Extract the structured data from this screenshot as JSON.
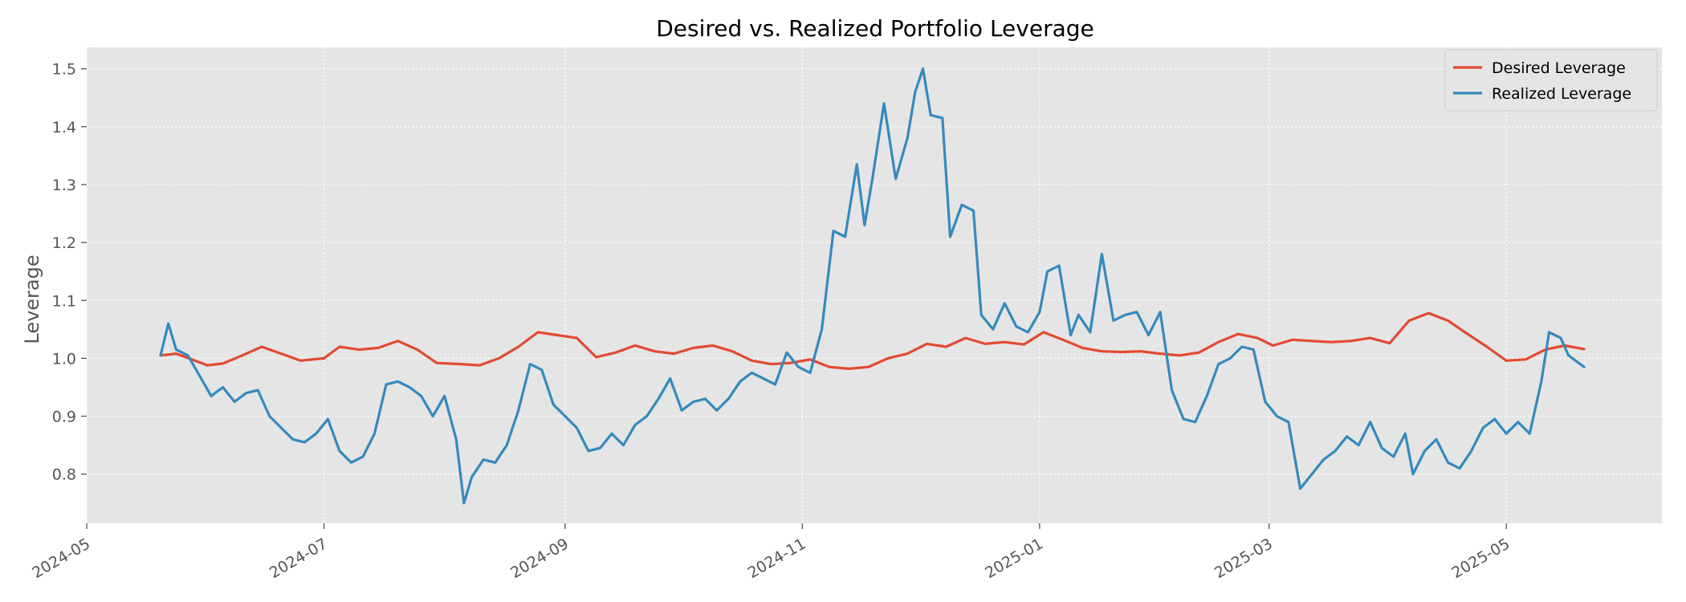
{
  "chart_data": {
    "type": "line",
    "title": "Desired vs. Realized Portfolio Leverage",
    "xlabel": "",
    "ylabel": "Leverage",
    "x_range": [
      "2024-05-01",
      "2025-06-10"
    ],
    "ylim": [
      0.715,
      1.537
    ],
    "x_ticks": [
      "2024-05",
      "2024-07",
      "2024-09",
      "2024-11",
      "2025-01",
      "2025-03",
      "2025-05"
    ],
    "y_ticks": [
      0.8,
      0.9,
      1.0,
      1.1,
      1.2,
      1.3,
      1.4,
      1.5
    ],
    "grid": true,
    "legend": "top-right",
    "series": [
      {
        "name": "Desired Leverage",
        "color": "#E24A33",
        "points": [
          [
            "2024-05-20",
            1.005
          ],
          [
            "2024-05-24",
            1.008
          ],
          [
            "2024-05-28",
            0.998
          ],
          [
            "2024-06-01",
            0.988
          ],
          [
            "2024-06-05",
            0.991
          ],
          [
            "2024-06-10",
            1.005
          ],
          [
            "2024-06-15",
            1.02
          ],
          [
            "2024-06-20",
            1.008
          ],
          [
            "2024-06-25",
            0.996
          ],
          [
            "2024-07-01",
            1.0
          ],
          [
            "2024-07-05",
            1.02
          ],
          [
            "2024-07-10",
            1.015
          ],
          [
            "2024-07-15",
            1.018
          ],
          [
            "2024-07-20",
            1.03
          ],
          [
            "2024-07-25",
            1.015
          ],
          [
            "2024-07-30",
            0.992
          ],
          [
            "2024-08-05",
            0.99
          ],
          [
            "2024-08-10",
            0.988
          ],
          [
            "2024-08-15",
            1.0
          ],
          [
            "2024-08-20",
            1.02
          ],
          [
            "2024-08-25",
            1.045
          ],
          [
            "2024-08-30",
            1.04
          ],
          [
            "2024-09-04",
            1.035
          ],
          [
            "2024-09-09",
            1.002
          ],
          [
            "2024-09-14",
            1.01
          ],
          [
            "2024-09-19",
            1.022
          ],
          [
            "2024-09-24",
            1.012
          ],
          [
            "2024-09-29",
            1.008
          ],
          [
            "2024-10-04",
            1.018
          ],
          [
            "2024-10-09",
            1.022
          ],
          [
            "2024-10-14",
            1.012
          ],
          [
            "2024-10-19",
            0.996
          ],
          [
            "2024-10-24",
            0.99
          ],
          [
            "2024-10-29",
            0.992
          ],
          [
            "2024-11-03",
            0.998
          ],
          [
            "2024-11-08",
            0.985
          ],
          [
            "2024-11-13",
            0.982
          ],
          [
            "2024-11-18",
            0.985
          ],
          [
            "2024-11-23",
            1.0
          ],
          [
            "2024-11-28",
            1.008
          ],
          [
            "2024-12-03",
            1.025
          ],
          [
            "2024-12-08",
            1.02
          ],
          [
            "2024-12-13",
            1.035
          ],
          [
            "2024-12-18",
            1.025
          ],
          [
            "2024-12-23",
            1.028
          ],
          [
            "2024-12-28",
            1.024
          ],
          [
            "2025-01-02",
            1.045
          ],
          [
            "2025-01-07",
            1.032
          ],
          [
            "2025-01-12",
            1.018
          ],
          [
            "2025-01-17",
            1.012
          ],
          [
            "2025-01-22",
            1.011
          ],
          [
            "2025-01-27",
            1.012
          ],
          [
            "2025-02-01",
            1.008
          ],
          [
            "2025-02-06",
            1.005
          ],
          [
            "2025-02-11",
            1.01
          ],
          [
            "2025-02-16",
            1.028
          ],
          [
            "2025-02-21",
            1.042
          ],
          [
            "2025-02-26",
            1.035
          ],
          [
            "2025-03-02",
            1.022
          ],
          [
            "2025-03-07",
            1.032
          ],
          [
            "2025-03-12",
            1.03
          ],
          [
            "2025-03-17",
            1.028
          ],
          [
            "2025-03-22",
            1.03
          ],
          [
            "2025-03-27",
            1.035
          ],
          [
            "2025-04-01",
            1.026
          ],
          [
            "2025-04-06",
            1.065
          ],
          [
            "2025-04-11",
            1.078
          ],
          [
            "2025-04-16",
            1.065
          ],
          [
            "2025-04-21",
            1.042
          ],
          [
            "2025-04-26",
            1.02
          ],
          [
            "2025-05-01",
            0.996
          ],
          [
            "2025-05-06",
            0.998
          ],
          [
            "2025-05-11",
            1.015
          ],
          [
            "2025-05-16",
            1.022
          ],
          [
            "2025-05-21",
            1.016
          ]
        ]
      },
      {
        "name": "Realized Leverage",
        "color": "#348ABD",
        "points": [
          [
            "2024-05-20",
            1.005
          ],
          [
            "2024-05-22",
            1.06
          ],
          [
            "2024-05-24",
            1.015
          ],
          [
            "2024-05-27",
            1.005
          ],
          [
            "2024-05-30",
            0.97
          ],
          [
            "2024-06-02",
            0.935
          ],
          [
            "2024-06-05",
            0.95
          ],
          [
            "2024-06-08",
            0.925
          ],
          [
            "2024-06-11",
            0.94
          ],
          [
            "2024-06-14",
            0.945
          ],
          [
            "2024-06-17",
            0.9
          ],
          [
            "2024-06-20",
            0.88
          ],
          [
            "2024-06-23",
            0.86
          ],
          [
            "2024-06-26",
            0.855
          ],
          [
            "2024-06-29",
            0.87
          ],
          [
            "2024-07-02",
            0.895
          ],
          [
            "2024-07-05",
            0.84
          ],
          [
            "2024-07-08",
            0.82
          ],
          [
            "2024-07-11",
            0.83
          ],
          [
            "2024-07-14",
            0.87
          ],
          [
            "2024-07-17",
            0.955
          ],
          [
            "2024-07-20",
            0.96
          ],
          [
            "2024-07-23",
            0.95
          ],
          [
            "2024-07-26",
            0.935
          ],
          [
            "2024-07-29",
            0.9
          ],
          [
            "2024-08-01",
            0.935
          ],
          [
            "2024-08-04",
            0.86
          ],
          [
            "2024-08-06",
            0.75
          ],
          [
            "2024-08-08",
            0.795
          ],
          [
            "2024-08-11",
            0.825
          ],
          [
            "2024-08-14",
            0.82
          ],
          [
            "2024-08-17",
            0.85
          ],
          [
            "2024-08-20",
            0.91
          ],
          [
            "2024-08-23",
            0.99
          ],
          [
            "2024-08-26",
            0.98
          ],
          [
            "2024-08-29",
            0.92
          ],
          [
            "2024-09-01",
            0.9
          ],
          [
            "2024-09-04",
            0.88
          ],
          [
            "2024-09-07",
            0.84
          ],
          [
            "2024-09-10",
            0.845
          ],
          [
            "2024-09-13",
            0.87
          ],
          [
            "2024-09-16",
            0.85
          ],
          [
            "2024-09-19",
            0.885
          ],
          [
            "2024-09-22",
            0.9
          ],
          [
            "2024-09-25",
            0.93
          ],
          [
            "2024-09-28",
            0.965
          ],
          [
            "2024-10-01",
            0.91
          ],
          [
            "2024-10-04",
            0.925
          ],
          [
            "2024-10-07",
            0.93
          ],
          [
            "2024-10-10",
            0.91
          ],
          [
            "2024-10-13",
            0.93
          ],
          [
            "2024-10-16",
            0.96
          ],
          [
            "2024-10-19",
            0.975
          ],
          [
            "2024-10-22",
            0.965
          ],
          [
            "2024-10-25",
            0.955
          ],
          [
            "2024-10-28",
            1.01
          ],
          [
            "2024-10-31",
            0.985
          ],
          [
            "2024-11-03",
            0.975
          ],
          [
            "2024-11-06",
            1.05
          ],
          [
            "2024-11-09",
            1.22
          ],
          [
            "2024-11-12",
            1.21
          ],
          [
            "2024-11-15",
            1.335
          ],
          [
            "2024-11-17",
            1.23
          ],
          [
            "2024-11-19",
            1.31
          ],
          [
            "2024-11-22",
            1.44
          ],
          [
            "2024-11-25",
            1.31
          ],
          [
            "2024-11-28",
            1.38
          ],
          [
            "2024-11-30",
            1.46
          ],
          [
            "2024-12-02",
            1.5
          ],
          [
            "2024-12-04",
            1.42
          ],
          [
            "2024-12-07",
            1.415
          ],
          [
            "2024-12-09",
            1.21
          ],
          [
            "2024-12-12",
            1.265
          ],
          [
            "2024-12-15",
            1.255
          ],
          [
            "2024-12-17",
            1.075
          ],
          [
            "2024-12-20",
            1.05
          ],
          [
            "2024-12-23",
            1.095
          ],
          [
            "2024-12-26",
            1.055
          ],
          [
            "2024-12-29",
            1.045
          ],
          [
            "2025-01-01",
            1.08
          ],
          [
            "2025-01-03",
            1.15
          ],
          [
            "2025-01-06",
            1.16
          ],
          [
            "2025-01-09",
            1.04
          ],
          [
            "2025-01-11",
            1.075
          ],
          [
            "2025-01-14",
            1.045
          ],
          [
            "2025-01-17",
            1.18
          ],
          [
            "2025-01-20",
            1.065
          ],
          [
            "2025-01-23",
            1.075
          ],
          [
            "2025-01-26",
            1.08
          ],
          [
            "2025-01-29",
            1.04
          ],
          [
            "2025-02-01",
            1.08
          ],
          [
            "2025-02-04",
            0.945
          ],
          [
            "2025-02-07",
            0.895
          ],
          [
            "2025-02-10",
            0.89
          ],
          [
            "2025-02-13",
            0.935
          ],
          [
            "2025-02-16",
            0.99
          ],
          [
            "2025-02-19",
            1.0
          ],
          [
            "2025-02-22",
            1.02
          ],
          [
            "2025-02-25",
            1.015
          ],
          [
            "2025-02-28",
            0.925
          ],
          [
            "2025-03-03",
            0.9
          ],
          [
            "2025-03-06",
            0.89
          ],
          [
            "2025-03-09",
            0.775
          ],
          [
            "2025-03-12",
            0.8
          ],
          [
            "2025-03-15",
            0.825
          ],
          [
            "2025-03-18",
            0.84
          ],
          [
            "2025-03-21",
            0.865
          ],
          [
            "2025-03-24",
            0.85
          ],
          [
            "2025-03-27",
            0.89
          ],
          [
            "2025-03-30",
            0.845
          ],
          [
            "2025-04-02",
            0.83
          ],
          [
            "2025-04-05",
            0.87
          ],
          [
            "2025-04-07",
            0.8
          ],
          [
            "2025-04-10",
            0.84
          ],
          [
            "2025-04-13",
            0.86
          ],
          [
            "2025-04-16",
            0.82
          ],
          [
            "2025-04-19",
            0.81
          ],
          [
            "2025-04-22",
            0.84
          ],
          [
            "2025-04-25",
            0.88
          ],
          [
            "2025-04-28",
            0.895
          ],
          [
            "2025-05-01",
            0.87
          ],
          [
            "2025-05-04",
            0.89
          ],
          [
            "2025-05-07",
            0.87
          ],
          [
            "2025-05-10",
            0.96
          ],
          [
            "2025-05-12",
            1.045
          ],
          [
            "2025-05-15",
            1.035
          ],
          [
            "2025-05-17",
            1.005
          ],
          [
            "2025-05-19",
            0.995
          ],
          [
            "2025-05-21",
            0.985
          ]
        ]
      }
    ]
  }
}
